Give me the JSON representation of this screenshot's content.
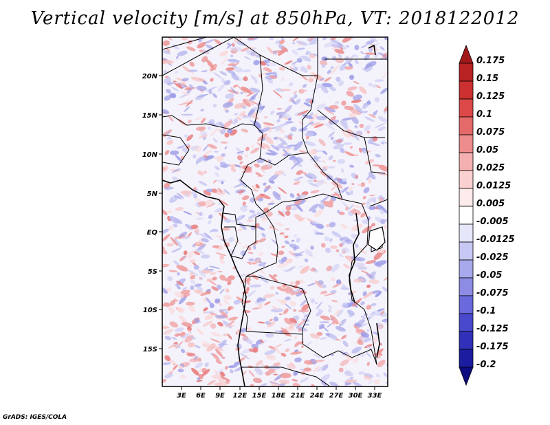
{
  "title": "Vertical velocity [m/s] at 850hPa, VT: 2018122012",
  "credit": "GrADS: IGES/COLA",
  "map": {
    "lat_ticks": [
      "20N",
      "15N",
      "10N",
      "5N",
      "EQ",
      "5S",
      "10S",
      "15S"
    ],
    "lon_ticks": [
      "3E",
      "6E",
      "9E",
      "12E",
      "15E",
      "18E",
      "21E",
      "24E",
      "27E",
      "30E",
      "33E"
    ]
  },
  "colorbar": {
    "levels": [
      "0.175",
      "0.15",
      "0.125",
      "0.1",
      "0.075",
      "0.05",
      "0.025",
      "0.0125",
      "0.005",
      "-0.005",
      "-0.0125",
      "-0.025",
      "-0.05",
      "-0.075",
      "-0.1",
      "-0.125",
      "-0.175",
      "-0.2"
    ],
    "colors": [
      "#a01818",
      "#b82222",
      "#cc3030",
      "#dc4848",
      "#e46a6a",
      "#ec8c8c",
      "#f4b0b0",
      "#fad0d0",
      "#fdeaea",
      "#ffffff",
      "#e6e6fb",
      "#c8c8f4",
      "#a8a8ec",
      "#8c8ce4",
      "#6a6adc",
      "#4848cc",
      "#3030b8",
      "#1c1ca0",
      "#0c0c80"
    ]
  }
}
